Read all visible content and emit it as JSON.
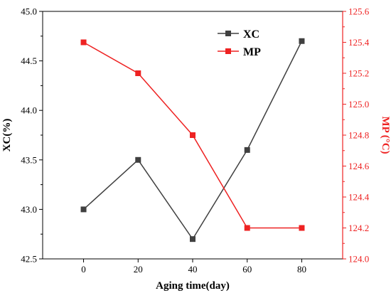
{
  "chart_data": {
    "type": "line",
    "x": [
      0,
      20,
      40,
      60,
      80
    ],
    "xlabel": "Aging time(day)",
    "xlim": [
      -15,
      95
    ],
    "xticks": [
      0,
      20,
      40,
      60,
      80
    ],
    "xtick_labels": [
      "0",
      "20",
      "40",
      "60",
      "80"
    ],
    "ylabel_left": "XC(%)",
    "ylim_left": [
      42.5,
      45.0
    ],
    "yticks_left": [
      42.5,
      43.0,
      43.5,
      44.0,
      44.5,
      45.0
    ],
    "ytick_labels_left": [
      "42.5",
      "43.0",
      "43.5",
      "44.0",
      "44.5",
      "45.0"
    ],
    "ylabel_right": "MP (°C)",
    "ylim_right": [
      124.0,
      125.6
    ],
    "yticks_right": [
      124.0,
      124.2,
      124.4,
      124.6,
      124.8,
      125.0,
      125.2,
      125.4,
      125.6
    ],
    "ytick_labels_right": [
      "124.0",
      "124.2",
      "124.4",
      "124.6",
      "124.8",
      "125.0",
      "125.2",
      "125.4",
      "125.6"
    ],
    "grid": false,
    "legend_position": "top-right",
    "series": [
      {
        "name": "XC",
        "axis": "left",
        "color": "#404040",
        "marker": "square",
        "values": [
          43.0,
          43.5,
          42.7,
          43.6,
          44.7
        ]
      },
      {
        "name": "MP",
        "axis": "right",
        "color": "#ee2222",
        "marker": "square",
        "values": [
          125.4,
          125.2,
          124.8,
          124.2,
          124.2
        ]
      }
    ]
  }
}
